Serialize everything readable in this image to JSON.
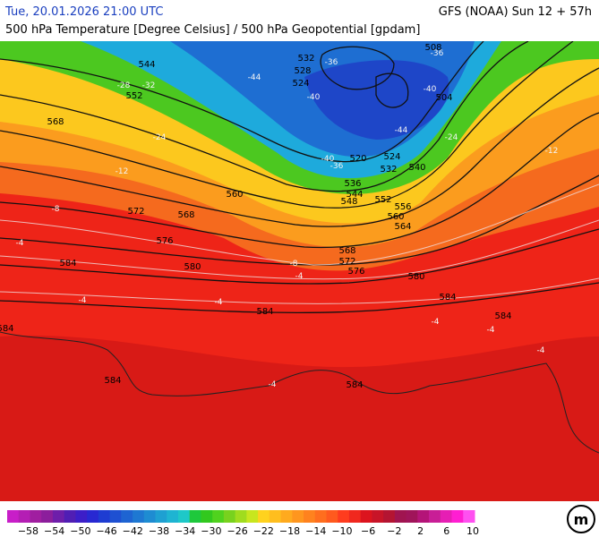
{
  "header": {
    "time": "Tue, 20.01.2026 21:00 UTC",
    "model": "GFS (NOAA) Sun 12 + 57h",
    "subtitle": "500 hPa Temperature [Degree Celsius] / 500 hPa Geopotential [gpdam]"
  },
  "map": {
    "height_labels": [
      "544",
      "532",
      "528",
      "524",
      "552",
      "568",
      "508",
      "504",
      "520",
      "536",
      "544",
      "548",
      "552",
      "556",
      "560",
      "564",
      "532",
      "540",
      "524",
      "560",
      "572",
      "568",
      "576",
      "580",
      "568",
      "572",
      "576",
      "580",
      "584",
      "584",
      "584",
      "584",
      "584",
      "584",
      "584"
    ],
    "temp_labels": [
      "-28",
      "-32",
      "-36",
      "-40",
      "-44",
      "-40",
      "-44",
      "-36",
      "-40",
      "-36",
      "-24",
      "-24",
      "-12",
      "-12",
      "-8",
      "-8",
      "-4",
      "-4",
      "-4",
      "-4",
      "-4",
      "-4",
      "-4",
      "-4"
    ]
  },
  "colorbar": {
    "labels": [
      "−58",
      "−54",
      "−50",
      "−46",
      "−42",
      "−38",
      "−34",
      "−30",
      "−26",
      "−22",
      "−18",
      "−14",
      "−10",
      "−6",
      "−2",
      "2",
      "6",
      "10"
    ],
    "colors": [
      "#c81ec8",
      "#b41eb4",
      "#a01ea0",
      "#8c1e9c",
      "#6e1eaa",
      "#501eb4",
      "#3c1ec8",
      "#2828d2",
      "#1e3cd2",
      "#1e50d2",
      "#1e64d2",
      "#1e78d2",
      "#1e8cd2",
      "#1ea0d2",
      "#1eb4d2",
      "#1ec8c8",
      "#1ec83c",
      "#32c81e",
      "#50d21e",
      "#78d21e",
      "#a0dc1e",
      "#c8e61e",
      "#ffd21e",
      "#ffbe1e",
      "#ffaa1e",
      "#ff961e",
      "#ff821e",
      "#ff6e1e",
      "#ff5a1e",
      "#ff3c1e",
      "#f0281e",
      "#dc141e",
      "#c81428",
      "#b41432",
      "#a01450",
      "#a0145a",
      "#b41478",
      "#c81e96",
      "#e61eb4",
      "#ff1ed2",
      "#ff50f0"
    ]
  }
}
